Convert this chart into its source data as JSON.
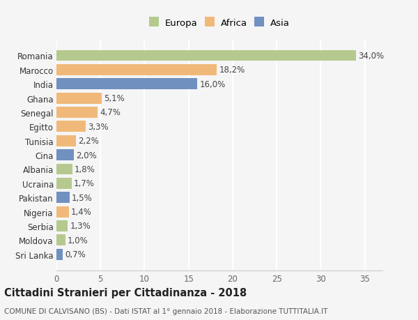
{
  "countries": [
    "Romania",
    "Marocco",
    "India",
    "Ghana",
    "Senegal",
    "Egitto",
    "Tunisia",
    "Cina",
    "Albania",
    "Ucraina",
    "Pakistan",
    "Nigeria",
    "Serbia",
    "Moldova",
    "Sri Lanka"
  ],
  "values": [
    34.0,
    18.2,
    16.0,
    5.1,
    4.7,
    3.3,
    2.2,
    2.0,
    1.8,
    1.7,
    1.5,
    1.4,
    1.3,
    1.0,
    0.7
  ],
  "continents": [
    "Europa",
    "Africa",
    "Asia",
    "Africa",
    "Africa",
    "Africa",
    "Africa",
    "Asia",
    "Europa",
    "Europa",
    "Asia",
    "Africa",
    "Europa",
    "Europa",
    "Asia"
  ],
  "colors": {
    "Europa": "#b5c98e",
    "Africa": "#f0b97a",
    "Asia": "#7090c0"
  },
  "legend_labels": [
    "Europa",
    "Africa",
    "Asia"
  ],
  "xlim": [
    0,
    37
  ],
  "xticks": [
    0,
    5,
    10,
    15,
    20,
    25,
    30,
    35
  ],
  "title": "Cittadini Stranieri per Cittadinanza - 2018",
  "subtitle": "COMUNE DI CALVISANO (BS) - Dati ISTAT al 1° gennaio 2018 - Elaborazione TUTTITALIA.IT",
  "bg_color": "#f5f5f5",
  "bar_edge_color": "none",
  "grid_color": "white",
  "label_fontsize": 8.5,
  "tick_fontsize": 8.5,
  "title_fontsize": 10.5,
  "subtitle_fontsize": 7.5,
  "bar_height": 0.78
}
